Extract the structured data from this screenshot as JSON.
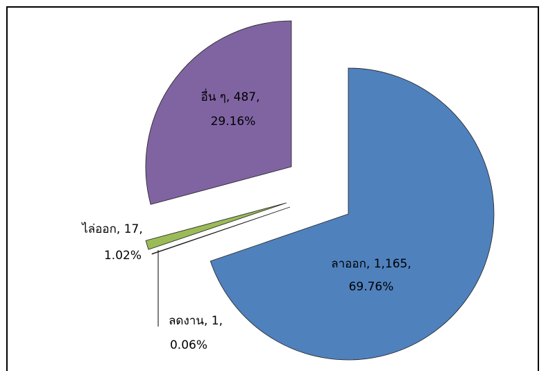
{
  "chart_data": {
    "type": "pie",
    "categories": [
      "ลาออก",
      "ลดงาน",
      "ไล่ออก",
      "อื่น ๆ"
    ],
    "values": [
      1165,
      1,
      17,
      487
    ],
    "value_labels": [
      [
        "ลาออก, 1,165,",
        "69.76%"
      ],
      [
        "ลดงาน, 1,",
        "0.06%"
      ],
      [
        "ไล่ออก, 17,",
        "1.02%"
      ],
      [
        "อื่น ๆ, 487,",
        "29.16%"
      ]
    ],
    "colors": [
      "#4f81bd",
      "#c0504d",
      "#9bbb59",
      "#8064a2"
    ]
  }
}
